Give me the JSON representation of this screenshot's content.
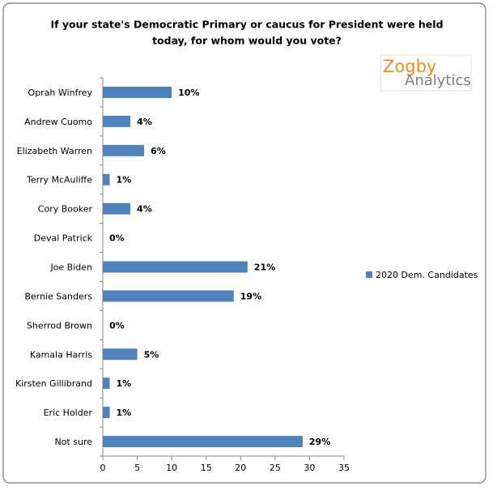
{
  "chart_data": {
    "type": "hbar",
    "title": [
      "If your state's Democratic Primary or caucus for President were held",
      "today, for whom would you vote?"
    ],
    "logo": {
      "line1": "Zogby",
      "line2": "Analytics"
    },
    "categories": [
      "Oprah Winfrey",
      "Andrew Cuomo",
      "Elizabeth Warren",
      "Terry McAuliffe",
      "Cory Booker",
      "Deval Patrick",
      "Joe Biden",
      "Bernie Sanders",
      "Sherrod Brown",
      "Kamala Harris",
      "Kirsten Gillibrand",
      "Eric Holder",
      "Not sure"
    ],
    "series": [
      {
        "name": "2020 Dem. Candidates",
        "color": "#4f81bd",
        "values": [
          10,
          4,
          6,
          1,
          4,
          0,
          21,
          19,
          0,
          5,
          1,
          1,
          29
        ],
        "value_labels": [
          "10%",
          "4%",
          "6%",
          "1%",
          "4%",
          "0%",
          "21%",
          "19%",
          "0%",
          "5%",
          "1%",
          "1%",
          "29%"
        ]
      }
    ],
    "xlim": [
      0,
      35
    ],
    "xticks": [
      0,
      5,
      10,
      15,
      20,
      25,
      30,
      35
    ],
    "grid": false,
    "legend": "right"
  }
}
